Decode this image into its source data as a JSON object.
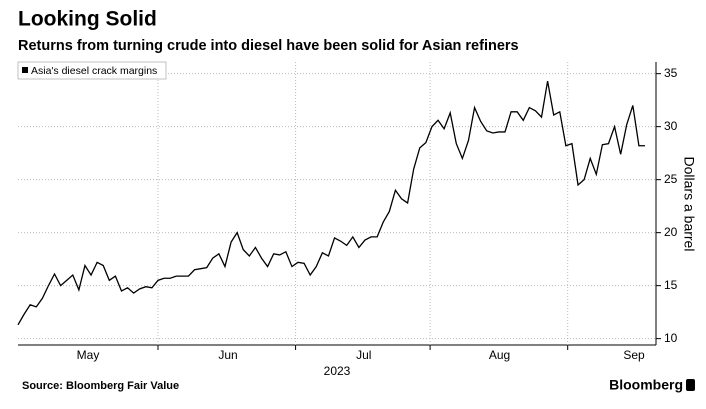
{
  "chart_data": {
    "type": "line",
    "title": "Looking Solid",
    "subtitle": "Returns from turning crude into diesel have been solid for Asian refiners",
    "y_label": "Dollars a barrel",
    "x_label": "2023",
    "source": "Source: Bloomberg Fair Value",
    "brand": "Bloomberg",
    "series": [
      {
        "name": "Asia's diesel crack margins",
        "color": "#000000",
        "values": [
          11.3,
          12.3,
          13.2,
          13.0,
          13.8,
          15.0,
          16.1,
          15.0,
          15.5,
          16.0,
          14.6,
          16.9,
          16.0,
          17.2,
          16.9,
          15.5,
          15.9,
          14.5,
          14.8,
          14.3,
          14.7,
          14.9,
          14.8,
          15.5,
          15.7,
          15.7,
          15.9,
          15.9,
          15.9,
          16.5,
          16.6,
          16.7,
          17.6,
          18.0,
          16.8,
          19.1,
          20.0,
          18.4,
          17.8,
          18.6,
          17.6,
          16.8,
          18.0,
          17.9,
          18.2,
          16.8,
          17.2,
          17.1,
          16.0,
          16.8,
          18.1,
          17.8,
          19.5,
          19.2,
          18.8,
          19.6,
          18.6,
          19.3,
          19.6,
          19.6,
          21.0,
          22.0,
          24.0,
          23.2,
          22.8,
          26.0,
          28.0,
          28.5,
          30.0,
          30.6,
          29.8,
          31.3,
          28.4,
          27.0,
          28.7,
          31.8,
          30.5,
          29.6,
          29.4,
          29.5,
          29.5,
          31.4,
          31.4,
          30.6,
          31.8,
          31.5,
          30.9,
          34.3,
          31.1,
          31.4,
          28.2,
          28.4,
          24.5,
          25.0,
          27.0,
          25.5,
          28.3,
          28.4,
          30.0,
          27.4,
          30.2,
          32.0,
          28.2,
          28.2
        ]
      }
    ],
    "xlim": [
      0,
      103
    ],
    "xticks": [
      {
        "value": 11.5,
        "label": "May"
      },
      {
        "value": 34.5,
        "label": "Jun"
      },
      {
        "value": 56.8,
        "label": "Jul"
      },
      {
        "value": 79.1,
        "label": "Aug"
      },
      {
        "value": 101.2,
        "label": "Sep"
      }
    ],
    "xgrid": [
      23,
      45.6,
      67.7,
      90.3
    ],
    "ylim": [
      9.4,
      36.1
    ],
    "yticks": [
      10,
      15,
      20,
      25,
      30,
      35
    ],
    "grid": true
  }
}
